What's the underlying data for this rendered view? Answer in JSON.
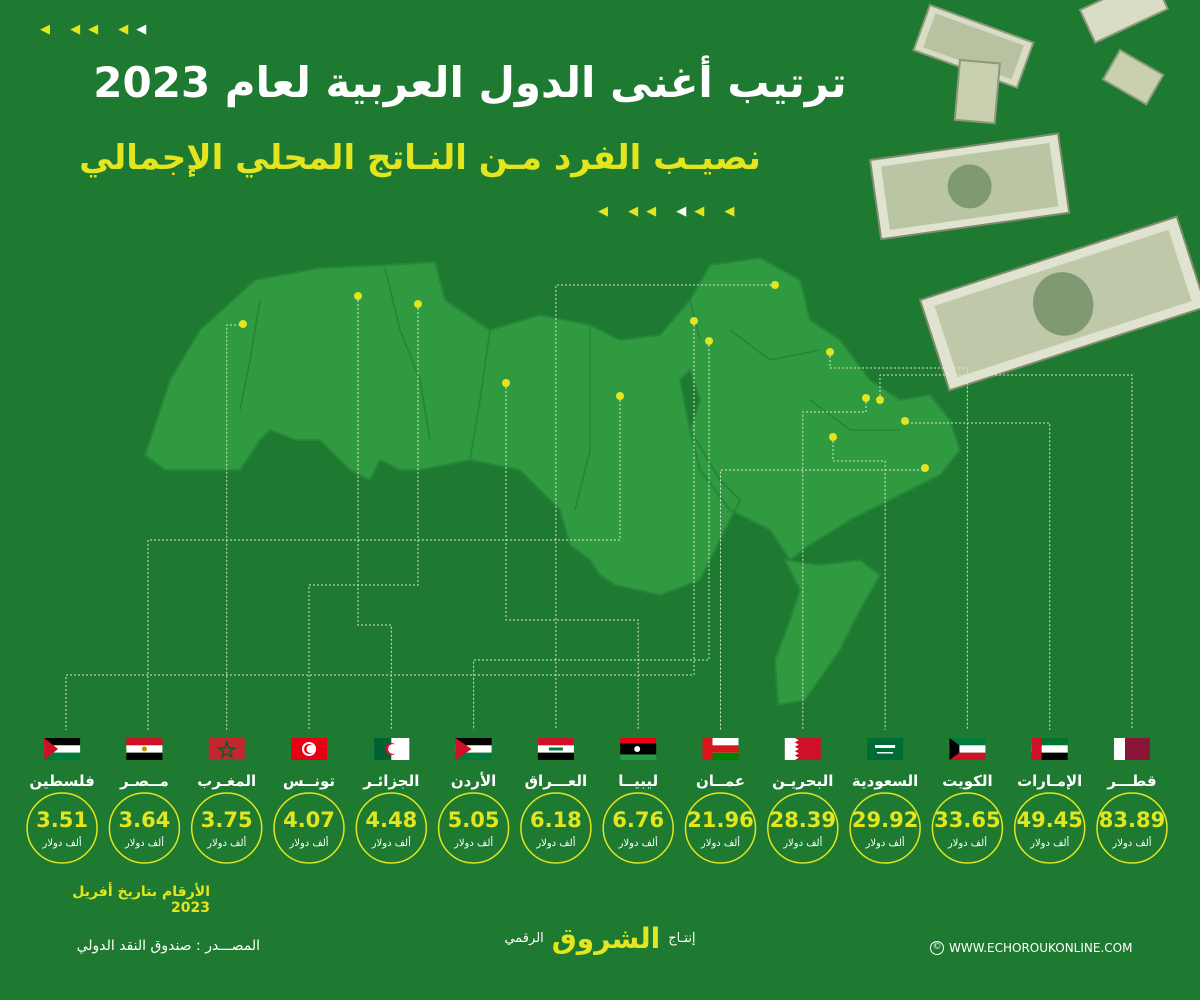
{
  "header": {
    "title": "ترتيب أغنى الدول العربية لعام 2023",
    "subtitle": "نصيـب الفرد مـن النـاتج المحلي الإجمالي"
  },
  "colors": {
    "background": "#1e7a31",
    "map": "#2f9a3f",
    "accent": "#e3e51f",
    "text": "#ffffff"
  },
  "chart_data": {
    "type": "map",
    "unit": "ألف دولار",
    "series": [
      {
        "country": "قطـــر",
        "value": 83.89,
        "flag": "qatar"
      },
      {
        "country": "الإمـارات",
        "value": 49.45,
        "flag": "uae"
      },
      {
        "country": "الكويت",
        "value": 33.65,
        "flag": "kuwait"
      },
      {
        "country": "السعودية",
        "value": 29.92,
        "flag": "saudi"
      },
      {
        "country": "البحريـن",
        "value": 28.39,
        "flag": "bahrain"
      },
      {
        "country": "عمــان",
        "value": 21.96,
        "flag": "oman"
      },
      {
        "country": "ليبيــا",
        "value": 6.76,
        "flag": "libya"
      },
      {
        "country": "العـــراق",
        "value": 6.18,
        "flag": "iraq"
      },
      {
        "country": "الأردن",
        "value": 5.05,
        "flag": "jordan"
      },
      {
        "country": "الجزائـر",
        "value": 4.48,
        "flag": "algeria"
      },
      {
        "country": "تونــس",
        "value": 4.07,
        "flag": "tunisia"
      },
      {
        "country": "المغـرب",
        "value": 3.75,
        "flag": "morocco"
      },
      {
        "country": "مــصـر",
        "value": 3.64,
        "flag": "egypt"
      },
      {
        "country": "فلسطين",
        "value": 3.51,
        "flag": "palestine"
      }
    ]
  },
  "footer": {
    "date_note": "الأرقام بتاريخ أفريل 2023",
    "source": "المصـــدر : صندوق النقد الدولي",
    "production": "إنتـاج",
    "brand": "الشروق",
    "digital": "الرقمي",
    "website": "WWW.ECHOROUKONLINE.COM",
    "copyright_symbol": "©"
  }
}
